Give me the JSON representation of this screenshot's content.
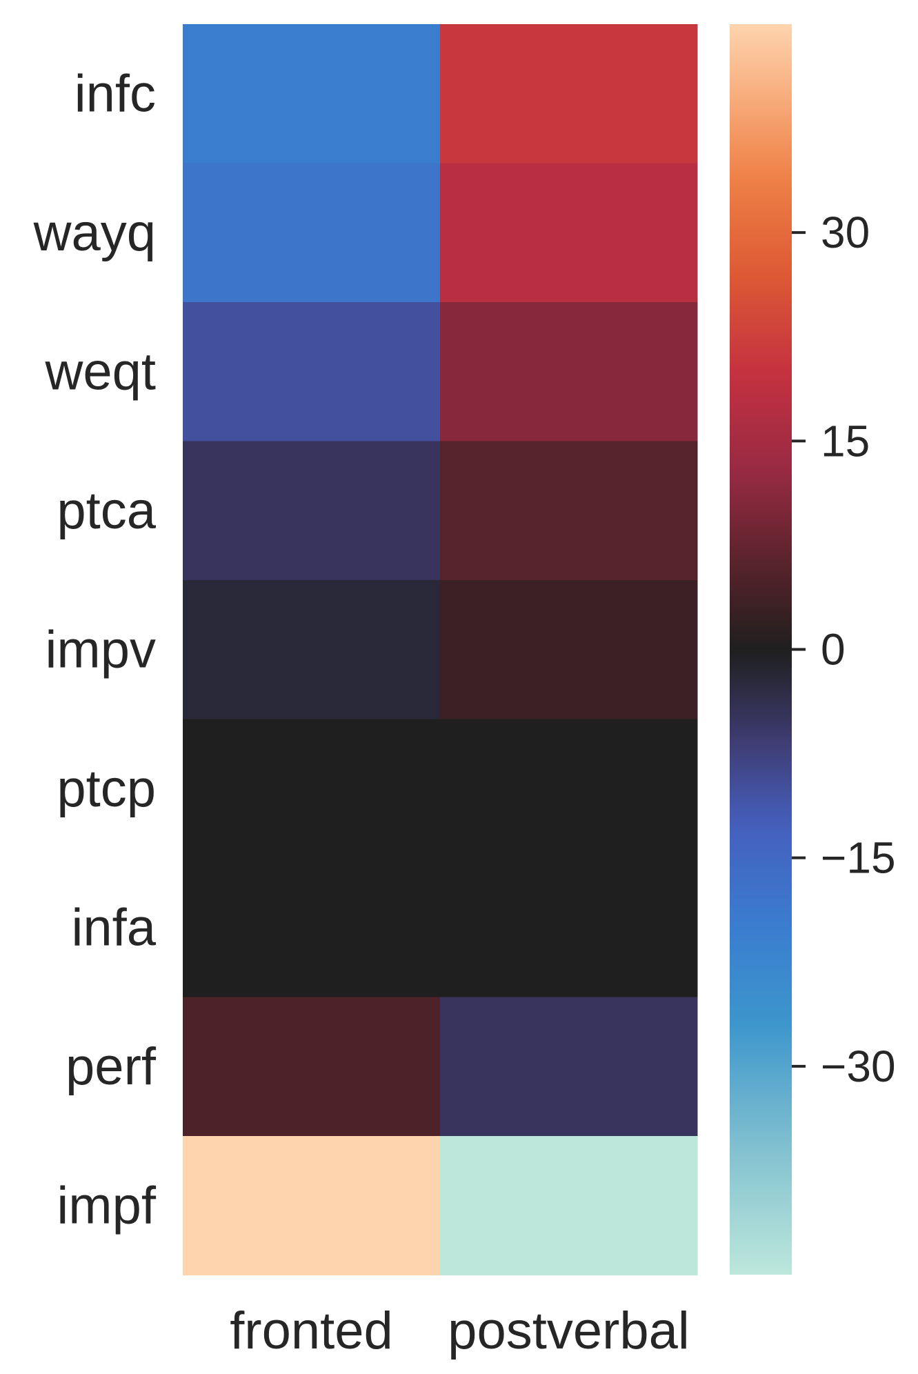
{
  "chart_data": {
    "type": "heatmap",
    "title": "",
    "xlabel": "",
    "ylabel": "",
    "rows": [
      "infc",
      "wayq",
      "weqt",
      "ptca",
      "impv",
      "ptcp",
      "infa",
      "perf",
      "impf"
    ],
    "columns": [
      "fronted",
      "postverbal"
    ],
    "values": [
      [
        -20,
        21
      ],
      [
        -18,
        18
      ],
      [
        -10,
        11
      ],
      [
        -5,
        6
      ],
      [
        -2,
        3
      ],
      [
        0,
        0
      ],
      [
        0,
        0
      ],
      [
        5,
        -5
      ],
      [
        45,
        -45
      ]
    ],
    "colorbar": {
      "vmin": -45,
      "vmax": 45,
      "ticks": [
        30,
        15,
        0,
        -15,
        -30
      ],
      "tick_labels": [
        "30",
        "15",
        "0",
        "−15",
        "−30"
      ],
      "colormap": "icefire"
    }
  }
}
